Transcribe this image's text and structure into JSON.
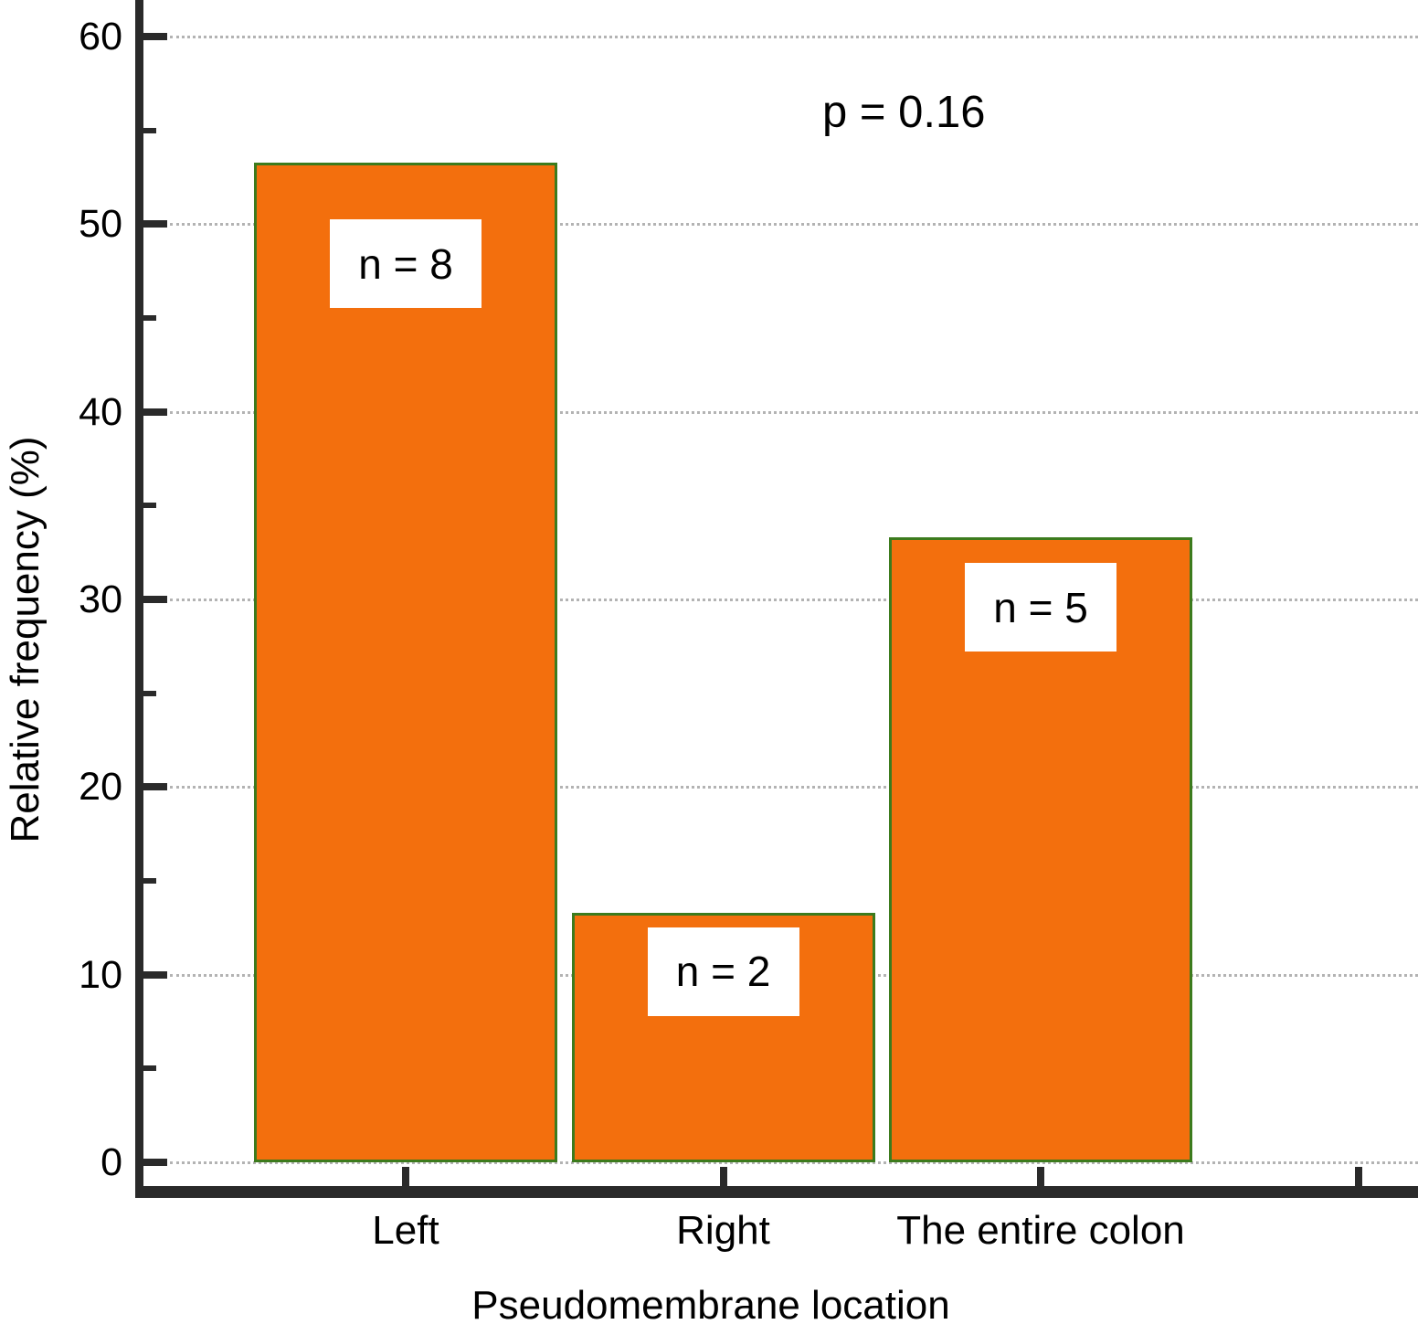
{
  "chart_data": {
    "type": "bar",
    "title": "",
    "categories": [
      "Left",
      "Right",
      "The entire colon"
    ],
    "values": [
      53.3,
      13.3,
      33.3
    ],
    "bar_labels": [
      "n = 8",
      "n = 2",
      "n = 5"
    ],
    "counts": [
      8,
      2,
      5
    ],
    "annotation": "p = 0.16",
    "xlabel": "Pseudomembrane location",
    "ylabel": "Relative frequency (%)",
    "ylim": [
      0,
      60
    ],
    "y_major_ticks": [
      60,
      50,
      40,
      30,
      20,
      10,
      0
    ],
    "y_minor_ticks": [
      55,
      45,
      35,
      25,
      15,
      5
    ],
    "grid": "horizontal dotted lines at major ticks",
    "legend_position": "none",
    "extra_unlabeled_x_tick": true,
    "bar_label_center_values": [
      47.9,
      10.2,
      29.6
    ],
    "colors": {
      "bar_fill": "#F36F0D",
      "bar_border": "#3C7B1D",
      "axis": "#2a2a2a",
      "grid": "#b3b3b3",
      "label_box_bg": "#ffffff",
      "text": "#000000"
    }
  }
}
